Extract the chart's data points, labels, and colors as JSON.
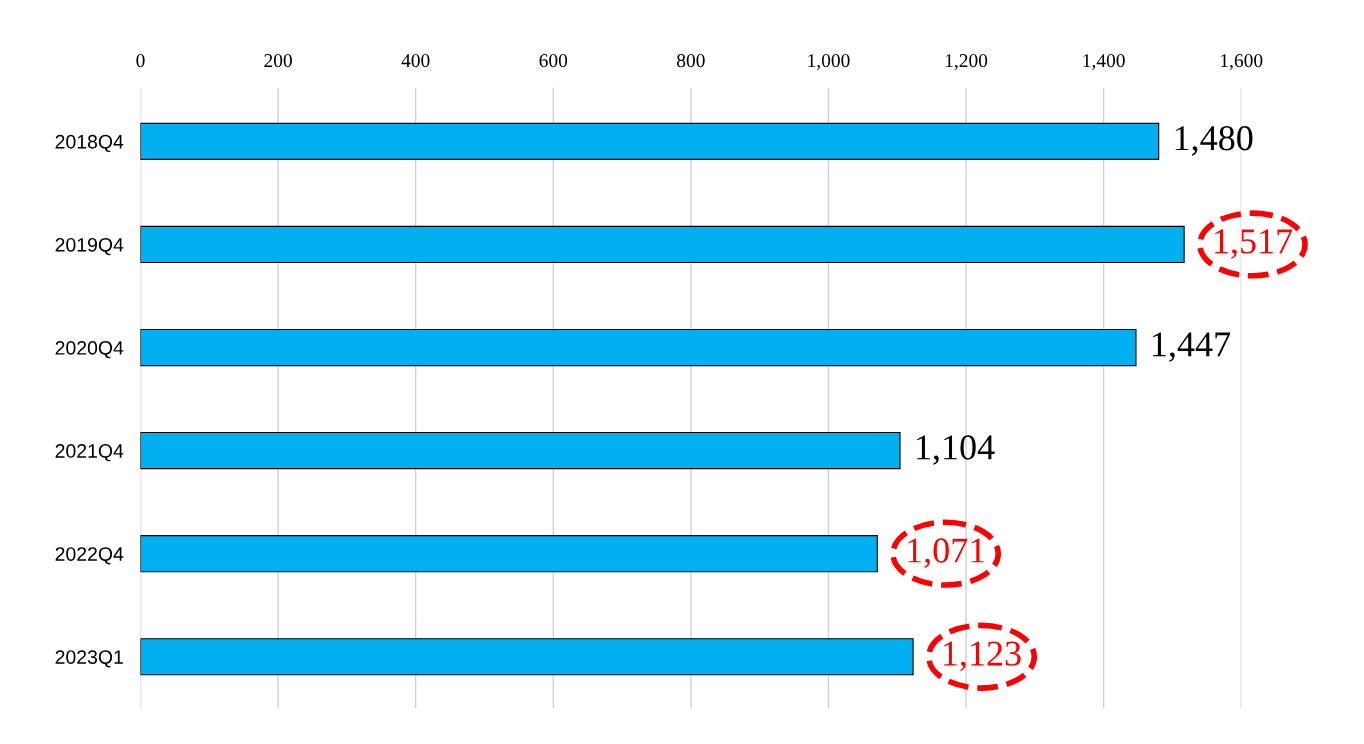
{
  "chart_data": {
    "type": "bar",
    "orientation": "horizontal",
    "categories": [
      "2018Q4",
      "2019Q4",
      "2020Q4",
      "2021Q4",
      "2022Q4",
      "2023Q1"
    ],
    "values": [
      1480,
      1517,
      1447,
      1104,
      1071,
      1123
    ],
    "value_labels": [
      "1,480",
      null,
      "1,447",
      "1,104",
      null,
      null
    ],
    "annotations": [
      {
        "text": "1,517",
        "x": 1517,
        "y": "2019Q4"
      },
      {
        "text": "1,071",
        "x": 1071,
        "y": "2022Q4"
      },
      {
        "text": "1,123",
        "x": 1123,
        "y": "2023Q1"
      }
    ],
    "color": "#00b0f0",
    "xlim": [
      0,
      1600
    ],
    "xticks": [
      0,
      200,
      400,
      600,
      800,
      {
        "value": 1000,
        "label": "1,000"
      },
      {
        "value": 1200,
        "label": "1,200"
      },
      {
        "value": 1400,
        "label": "1,400"
      },
      {
        "value": 1600,
        "label": "1,600"
      }
    ],
    "grid": "x",
    "legend": false
  }
}
